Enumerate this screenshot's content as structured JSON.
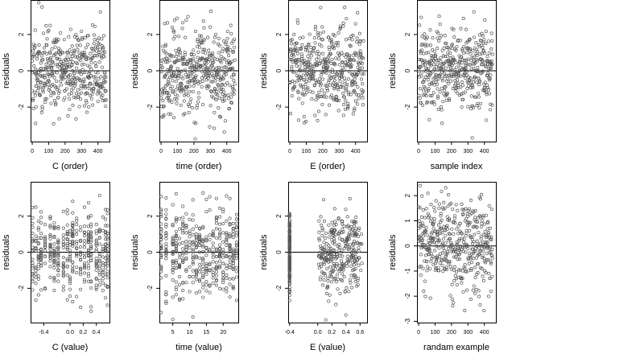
{
  "figure": {
    "panel_count": 8,
    "layout": "2 rows x 4 columns",
    "background": "#ffffff",
    "point_color": "#555555",
    "line_color": "#000000"
  },
  "chart_data": [
    {
      "type": "scatter",
      "xlabel": "C (order)",
      "ylabel": "residuals",
      "xlim": [
        -10,
        470
      ],
      "ylim": [
        -3.9,
        3.9
      ],
      "xticks": [
        0,
        100,
        200,
        300,
        400
      ],
      "yticks": [
        -2,
        0,
        2
      ],
      "hline": 0,
      "n_points": 450,
      "pattern": "order",
      "seed": 11
    },
    {
      "type": "scatter",
      "xlabel": "time (order)",
      "ylabel": "residuals",
      "xlim": [
        -10,
        470
      ],
      "ylim": [
        -3.9,
        3.9
      ],
      "xticks": [
        0,
        100,
        200,
        300,
        400
      ],
      "yticks": [
        -2,
        0,
        2
      ],
      "hline": 0,
      "n_points": 450,
      "pattern": "order",
      "seed": 23
    },
    {
      "type": "scatter",
      "xlabel": "E (order)",
      "ylabel": "residuals",
      "xlim": [
        -10,
        470
      ],
      "ylim": [
        -3.9,
        3.9
      ],
      "xticks": [
        0,
        100,
        200,
        300,
        400
      ],
      "yticks": [
        -2,
        0,
        2
      ],
      "hline": 0,
      "n_points": 450,
      "pattern": "order",
      "seed": 37
    },
    {
      "type": "scatter",
      "xlabel": "sample index",
      "ylabel": "residuals",
      "xlim": [
        -10,
        470
      ],
      "ylim": [
        -3.9,
        3.9
      ],
      "xticks": [
        0,
        100,
        200,
        300,
        400
      ],
      "yticks": [
        -2,
        0,
        2
      ],
      "hline": 0,
      "n_points": 450,
      "pattern": "order",
      "seed": 41
    },
    {
      "type": "scatter",
      "xlabel": "C (value)",
      "ylabel": "residuals",
      "xlim": [
        -0.6,
        0.6
      ],
      "ylim": [
        -3.9,
        3.9
      ],
      "xticks": [
        -0.4,
        0.0,
        0.2,
        0.4
      ],
      "xticklabels": [
        "-0.4",
        "0.0",
        "0.2",
        "0.4"
      ],
      "yticks": [
        -2,
        0,
        2
      ],
      "hline": 0,
      "n_points": 450,
      "pattern": "columns",
      "column_values": [
        -0.57,
        -0.52,
        -0.48,
        -0.44,
        -0.38,
        -0.3,
        -0.24,
        -0.18,
        -0.1,
        -0.04,
        0.0,
        0.04,
        0.1,
        0.16,
        0.22,
        0.28,
        0.32,
        0.4,
        0.45,
        0.5,
        0.54,
        0.57
      ],
      "seed": 53
    },
    {
      "type": "scatter",
      "xlabel": "time (value)",
      "ylabel": "residuals",
      "xlim": [
        1,
        24.5
      ],
      "ylim": [
        -3.9,
        3.9
      ],
      "xticks": [
        5,
        10,
        15,
        20
      ],
      "yticks": [
        -2,
        0,
        2
      ],
      "hline": 0,
      "n_points": 450,
      "pattern": "columns",
      "column_values": [
        1.5,
        3,
        5,
        6,
        7,
        8,
        9,
        10,
        11,
        12,
        13,
        14,
        15,
        16,
        17,
        18,
        19,
        20,
        21,
        22,
        23,
        24
      ],
      "seed": 67
    },
    {
      "type": "scatter",
      "xlabel": "E (value)",
      "ylabel": "residuals",
      "xlim": [
        -0.42,
        0.7
      ],
      "ylim": [
        -3.9,
        3.9
      ],
      "xticks": [
        -0.4,
        0.0,
        0.2,
        0.4,
        0.6
      ],
      "xticklabels": [
        "-0.4",
        "0.0",
        "0.2",
        "0.4",
        "0.6"
      ],
      "yticks": [
        -2,
        0,
        2
      ],
      "hline": 0,
      "n_points": 450,
      "pattern": "cluster",
      "column_values": [
        -0.4
      ],
      "seed": 79
    },
    {
      "type": "scatter",
      "xlabel": "randam example",
      "ylabel": "residuals",
      "xlim": [
        -10,
        470
      ],
      "ylim": [
        -3.05,
        2.55
      ],
      "xticks": [
        0,
        100,
        200,
        300,
        400
      ],
      "yticks": [
        -3,
        -2,
        -1,
        0,
        1,
        2
      ],
      "hline": 0,
      "n_points": 450,
      "pattern": "random",
      "seed": 97
    }
  ]
}
